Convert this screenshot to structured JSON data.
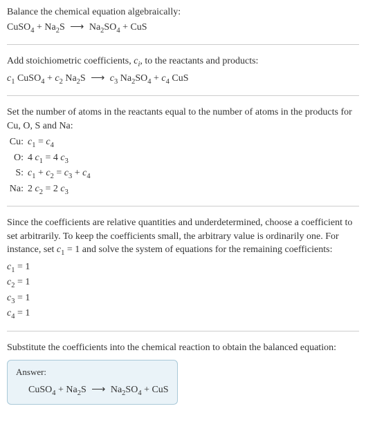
{
  "section1": {
    "line1": "Balance the chemical equation algebraically:",
    "eq_lhs1": "CuSO",
    "eq_lhs1_sub": "4",
    "eq_plus1": " + Na",
    "eq_plus1_sub": "2",
    "eq_plus1b": "S",
    "arrow": "⟶",
    "eq_rhs1": "Na",
    "eq_rhs1_sub": "2",
    "eq_rhs1b": "SO",
    "eq_rhs1b_sub": "4",
    "eq_rhs_plus": " + CuS"
  },
  "section2": {
    "line1a": "Add stoichiometric coefficients, ",
    "line1b": "c",
    "line1b_sub": "i",
    "line1c": ", to the reactants and products:",
    "c1": "c",
    "c1sub": "1",
    "sp1": " CuSO",
    "sp1sub": "4",
    "plus1": " + ",
    "c2": "c",
    "c2sub": "2",
    "sp2": " Na",
    "sp2sub": "2",
    "sp2b": "S",
    "arrow": "⟶",
    "c3": "c",
    "c3sub": "3",
    "sp3": " Na",
    "sp3sub": "2",
    "sp3b": "SO",
    "sp3bsub": "4",
    "plus2": " + ",
    "c4": "c",
    "c4sub": "4",
    "sp4": " CuS"
  },
  "section3": {
    "line1": "Set the number of atoms in the reactants equal to the number of atoms in the products for Cu, O, S and Na:",
    "rows": [
      {
        "label": "Cu:",
        "pre": "",
        "a": "c",
        "asub": "1",
        "mid": " = ",
        "b": "c",
        "bsub": "4",
        "post": ""
      },
      {
        "label": "O:",
        "pre": "4 ",
        "a": "c",
        "asub": "1",
        "mid": " = 4 ",
        "b": "c",
        "bsub": "3",
        "post": ""
      },
      {
        "label": "S:",
        "pre": "",
        "a": "c",
        "asub": "1",
        "mid": " + ",
        "b": "c",
        "bsub": "2",
        "mid2": " = ",
        "cc": "c",
        "csub": "3",
        "mid3": " + ",
        "d": "c",
        "dsub": "4"
      },
      {
        "label": "Na:",
        "pre": "2 ",
        "a": "c",
        "asub": "2",
        "mid": " = 2 ",
        "b": "c",
        "bsub": "3",
        "post": ""
      }
    ]
  },
  "section4": {
    "line1": "Since the coefficients are relative quantities and underdetermined, choose a coefficient to set arbitrarily. To keep the coefficients small, the arbitrary value is ordinarily one. For instance, set ",
    "c1": "c",
    "c1sub": "1",
    "line1b": " = 1 and solve the system of equations for the remaining coefficients:",
    "coefs": [
      {
        "c": "c",
        "sub": "1",
        "val": " = 1"
      },
      {
        "c": "c",
        "sub": "2",
        "val": " = 1"
      },
      {
        "c": "c",
        "sub": "3",
        "val": " = 1"
      },
      {
        "c": "c",
        "sub": "4",
        "val": " = 1"
      }
    ]
  },
  "section5": {
    "line1": "Substitute the coefficients into the chemical reaction to obtain the balanced equation:",
    "answer_label": "Answer:",
    "eq_lhs1": "CuSO",
    "eq_lhs1_sub": "4",
    "eq_plus1": " + Na",
    "eq_plus1_sub": "2",
    "eq_plus1b": "S",
    "arrow": "⟶",
    "eq_rhs1": "Na",
    "eq_rhs1_sub": "2",
    "eq_rhs1b": "SO",
    "eq_rhs1b_sub": "4",
    "eq_rhs_plus": " + CuS"
  }
}
